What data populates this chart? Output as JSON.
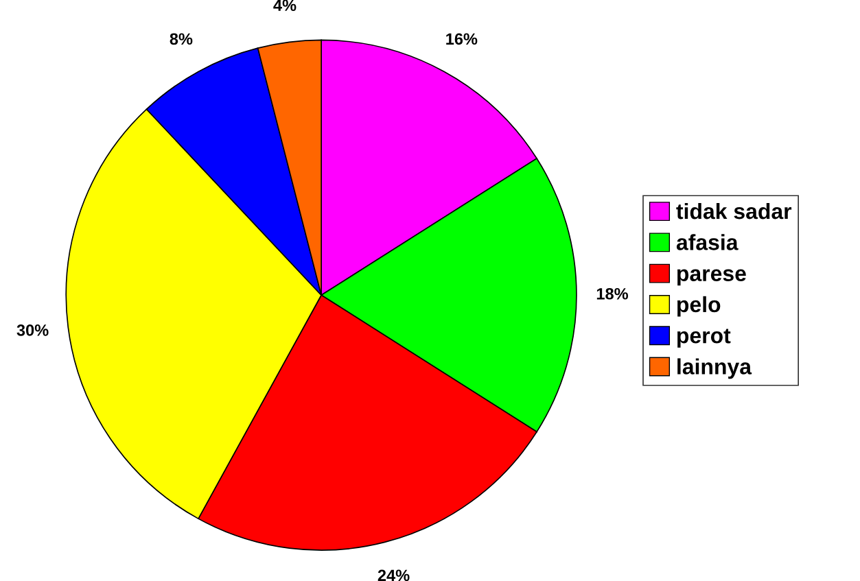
{
  "chart_data": {
    "type": "pie",
    "categories": [
      "tidak sadar",
      "afasia",
      "parese",
      "pelo",
      "perot",
      "lainnya"
    ],
    "values": [
      16,
      18,
      24,
      30,
      8,
      4
    ],
    "colors": [
      "#ff00ff",
      "#00ff00",
      "#ff0000",
      "#ffff00",
      "#0000ff",
      "#ff6600"
    ],
    "value_labels": [
      "16%",
      "18%",
      "24%",
      "30%",
      "8%",
      "4%"
    ],
    "legend": "right"
  }
}
